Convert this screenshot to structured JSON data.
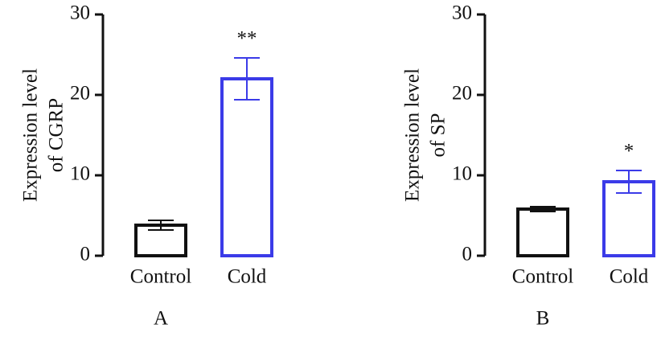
{
  "chart_data": [
    {
      "type": "bar",
      "panel": "A",
      "ylabel": [
        "Expression level",
        "of CGRP"
      ],
      "categories": [
        "Control",
        "Cold"
      ],
      "values": [
        3.8,
        22
      ],
      "errors": [
        0.6,
        2.6
      ],
      "colors": [
        "#111111",
        "#3b3be8"
      ],
      "ylim": [
        0,
        30
      ],
      "yticks": [
        0,
        10,
        20,
        30
      ],
      "annotations": [
        {
          "x": "Cold",
          "text": "**"
        }
      ]
    },
    {
      "type": "bar",
      "panel": "B",
      "ylabel": [
        "Expression level",
        "of SP"
      ],
      "categories": [
        "Control",
        "Cold"
      ],
      "values": [
        5.8,
        9.2
      ],
      "errors": [
        0.3,
        1.4
      ],
      "colors": [
        "#111111",
        "#3b3be8"
      ],
      "ylim": [
        0,
        30
      ],
      "yticks": [
        0,
        10,
        20,
        30
      ],
      "annotations": [
        {
          "x": "Cold",
          "text": "*"
        }
      ]
    }
  ]
}
